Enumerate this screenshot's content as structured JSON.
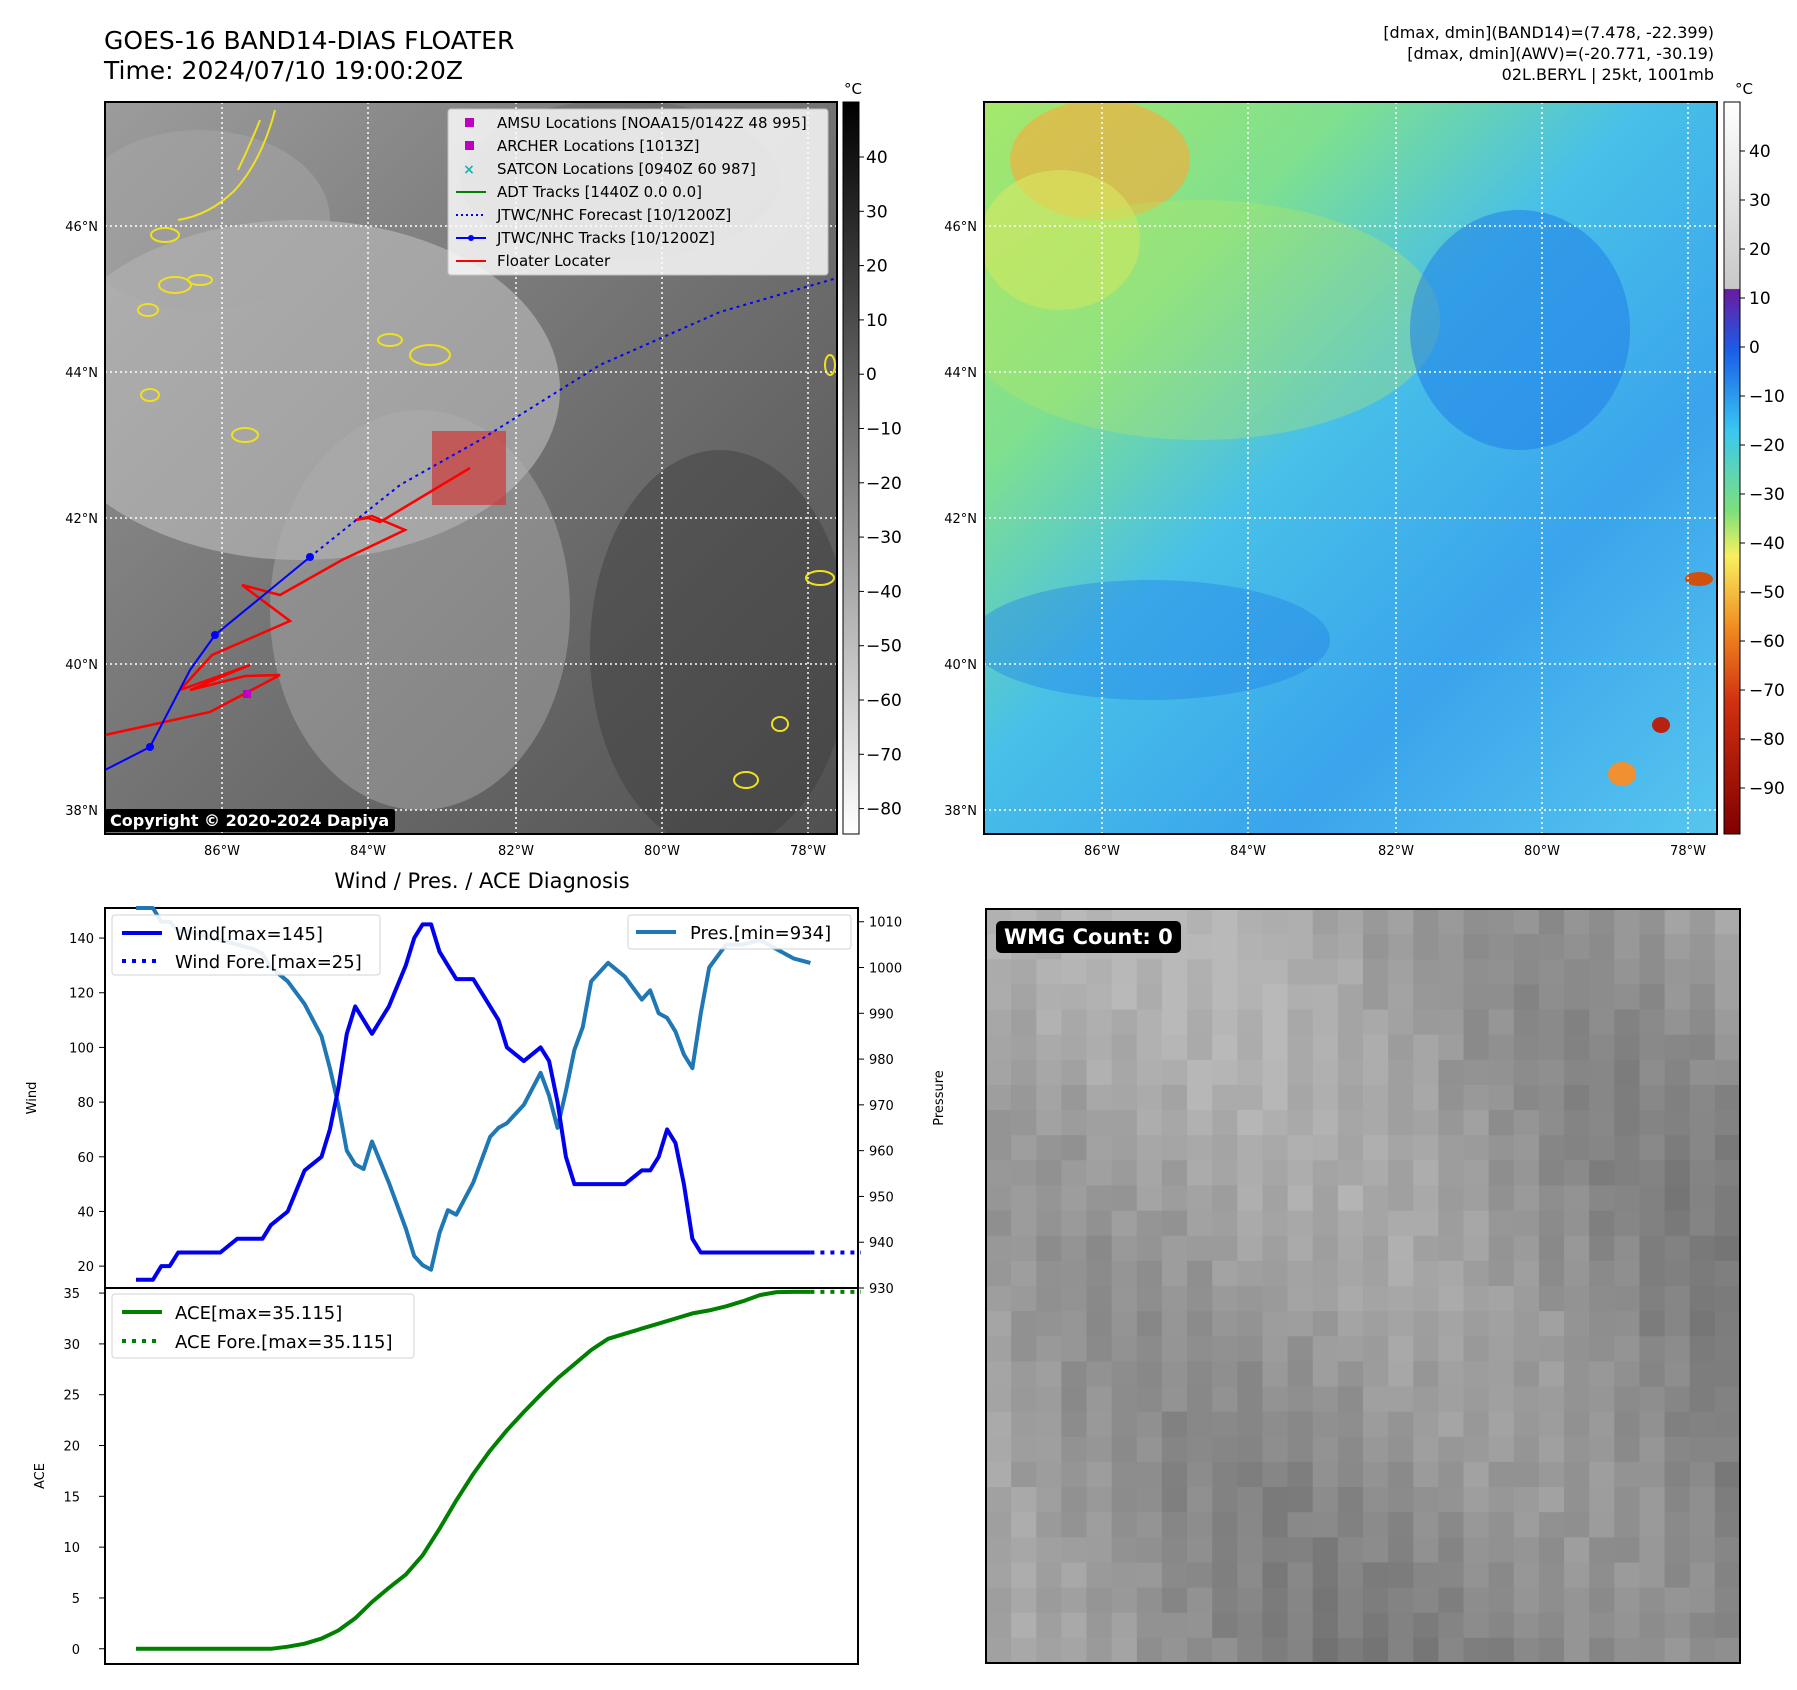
{
  "header": {
    "title_line1": "GOES-16 BAND14-DIAS FLOATER",
    "title_line2": "Time: 2024/07/10 19:00:20Z",
    "info_line1": "[dmax, dmin](BAND14)=(7.478, -22.399)",
    "info_line2": "[dmax, dmin](AWV)=(-20.771, -30.19)",
    "info_line3": "02L.BERYL | 25kt, 1001mb"
  },
  "map": {
    "lat_ticks": [
      "46°N",
      "44°N",
      "42°N",
      "40°N",
      "38°N"
    ],
    "lon_ticks": [
      "86°W",
      "84°W",
      "82°W",
      "80°W",
      "78°W"
    ],
    "copyright": "Copyright © 2020-2024 Dapiya",
    "legend": [
      {
        "label": "AMSU Locations [NOAA15/0142Z 48 995]",
        "color": "#c000c0",
        "marker": "square"
      },
      {
        "label": "ARCHER Locations [1013Z]",
        "color": "#c000c0",
        "marker": "square"
      },
      {
        "label": "SATCON Locations [0940Z 60 987]",
        "color": "#20b0b0",
        "marker": "x"
      },
      {
        "label": "ADT Tracks [1440Z 0.0 0.0]",
        "color": "#008000",
        "marker": "line"
      },
      {
        "label": "JTWC/NHC Forecast [10/1200Z]",
        "color": "#0000ff",
        "marker": "dotted"
      },
      {
        "label": "JTWC/NHC Tracks [10/1200Z]",
        "color": "#0000ff",
        "marker": "line-dot"
      },
      {
        "label": "Floater Locater",
        "color": "#ff0000",
        "marker": "line"
      }
    ],
    "gray_colorbar": {
      "unit": "°C",
      "ticks": [
        "40",
        "30",
        "20",
        "10",
        "0",
        "−10",
        "−20",
        "−30",
        "−40",
        "−50",
        "−60",
        "−70",
        "−80"
      ]
    },
    "color_colorbar": {
      "unit": "°C",
      "ticks": [
        "40",
        "30",
        "20",
        "10",
        "0",
        "−10",
        "−20",
        "−30",
        "−40",
        "−50",
        "−60",
        "−70",
        "−80",
        "−90"
      ]
    }
  },
  "wmg": {
    "label": "WMG Count: 0"
  },
  "chart_data": [
    {
      "type": "line",
      "title": "Wind / Pres. / ACE Diagnosis",
      "ylabel": "Wind",
      "ylabel_right": "Pressure",
      "ylim": [
        12,
        151
      ],
      "ylim_right": [
        930,
        1013
      ],
      "yticks": [
        20,
        40,
        60,
        80,
        100,
        120,
        140
      ],
      "yticks_right": [
        930,
        940,
        950,
        960,
        970,
        980,
        990,
        1000,
        1010
      ],
      "legend": [
        "Wind[max=145]",
        "Wind Fore.[max=25]",
        "Pres.[min=934]"
      ],
      "series": [
        {
          "name": "Wind[max=145]",
          "color": "#0000ee",
          "x": [
            0,
            2,
            3,
            4,
            5,
            6,
            8,
            10,
            12,
            14,
            15,
            16,
            18,
            20,
            22,
            23,
            24,
            25,
            26,
            27,
            28,
            30,
            32,
            33,
            34,
            35,
            36,
            37,
            38,
            40,
            42,
            43,
            44,
            46,
            48,
            49,
            50,
            51,
            52,
            53,
            54,
            56,
            58,
            60,
            61,
            62,
            63,
            64,
            65,
            66,
            67,
            68,
            70,
            72,
            74,
            76,
            78,
            80
          ],
          "values": [
            15,
            15,
            20,
            20,
            25,
            25,
            25,
            25,
            30,
            30,
            30,
            35,
            40,
            55,
            60,
            70,
            85,
            105,
            115,
            110,
            105,
            115,
            130,
            140,
            145,
            145,
            135,
            130,
            125,
            125,
            115,
            110,
            100,
            95,
            100,
            95,
            80,
            60,
            50,
            50,
            50,
            50,
            50,
            55,
            55,
            60,
            70,
            65,
            50,
            30,
            25,
            25,
            25,
            25,
            25,
            25,
            25,
            25
          ]
        },
        {
          "name": "Wind Fore.[max=25]",
          "color": "#0000ee",
          "x": [
            80,
            82,
            86
          ],
          "values": [
            25,
            25,
            25
          ]
        },
        {
          "name": "Pres.[min=934]",
          "color": "#1f77b4",
          "x": [
            0,
            2,
            3,
            4,
            5,
            6,
            8,
            10,
            12,
            14,
            15,
            16,
            18,
            20,
            22,
            23,
            24,
            25,
            26,
            27,
            28,
            30,
            32,
            33,
            34,
            35,
            36,
            37,
            38,
            40,
            42,
            43,
            44,
            46,
            48,
            49,
            50,
            51,
            52,
            53,
            54,
            56,
            58,
            60,
            61,
            62,
            63,
            64,
            65,
            66,
            67,
            68,
            70,
            72,
            74,
            76,
            78,
            80
          ],
          "values": [
            1013,
            1013,
            1010,
            1010,
            1008,
            1008,
            1007,
            1006,
            1005,
            1004,
            1003,
            1000,
            997,
            992,
            985,
            978,
            970,
            960,
            957,
            956,
            962,
            953,
            943,
            937,
            935,
            934,
            942,
            947,
            946,
            953,
            963,
            965,
            966,
            970,
            977,
            972,
            965,
            973,
            982,
            987,
            997,
            1001,
            998,
            993,
            995,
            990,
            989,
            986,
            981,
            978,
            990,
            1000,
            1005,
            1005,
            1006,
            1004,
            1002,
            1001
          ]
        }
      ]
    },
    {
      "type": "line",
      "ylabel": "ACE",
      "ylim": [
        -1.5,
        35.5
      ],
      "yticks": [
        0,
        5,
        10,
        15,
        20,
        25,
        30,
        35
      ],
      "legend": [
        "ACE[max=35.115]",
        "ACE Fore.[max=35.115]"
      ],
      "series": [
        {
          "name": "ACE[max=35.115]",
          "color": "#008000",
          "x": [
            0,
            4,
            8,
            12,
            16,
            18,
            20,
            22,
            24,
            26,
            28,
            30,
            32,
            34,
            36,
            38,
            40,
            42,
            44,
            46,
            48,
            50,
            52,
            54,
            56,
            58,
            60,
            62,
            64,
            66,
            68,
            70,
            72,
            74,
            76,
            78,
            80
          ],
          "values": [
            0,
            0,
            0,
            0,
            0,
            0.2,
            0.5,
            1.0,
            1.8,
            3,
            4.6,
            6,
            7.3,
            9.2,
            11.8,
            14.6,
            17.2,
            19.5,
            21.5,
            23.3,
            25,
            26.6,
            28,
            29.4,
            30.5,
            31,
            31.5,
            32,
            32.5,
            33,
            33.3,
            33.7,
            34.2,
            34.8,
            35.1,
            35.115,
            35.115
          ]
        },
        {
          "name": "ACE Fore.[max=35.115]",
          "color": "#008000",
          "x": [
            80,
            82,
            86
          ],
          "values": [
            35.115,
            35.115,
            35.115
          ]
        }
      ]
    }
  ]
}
